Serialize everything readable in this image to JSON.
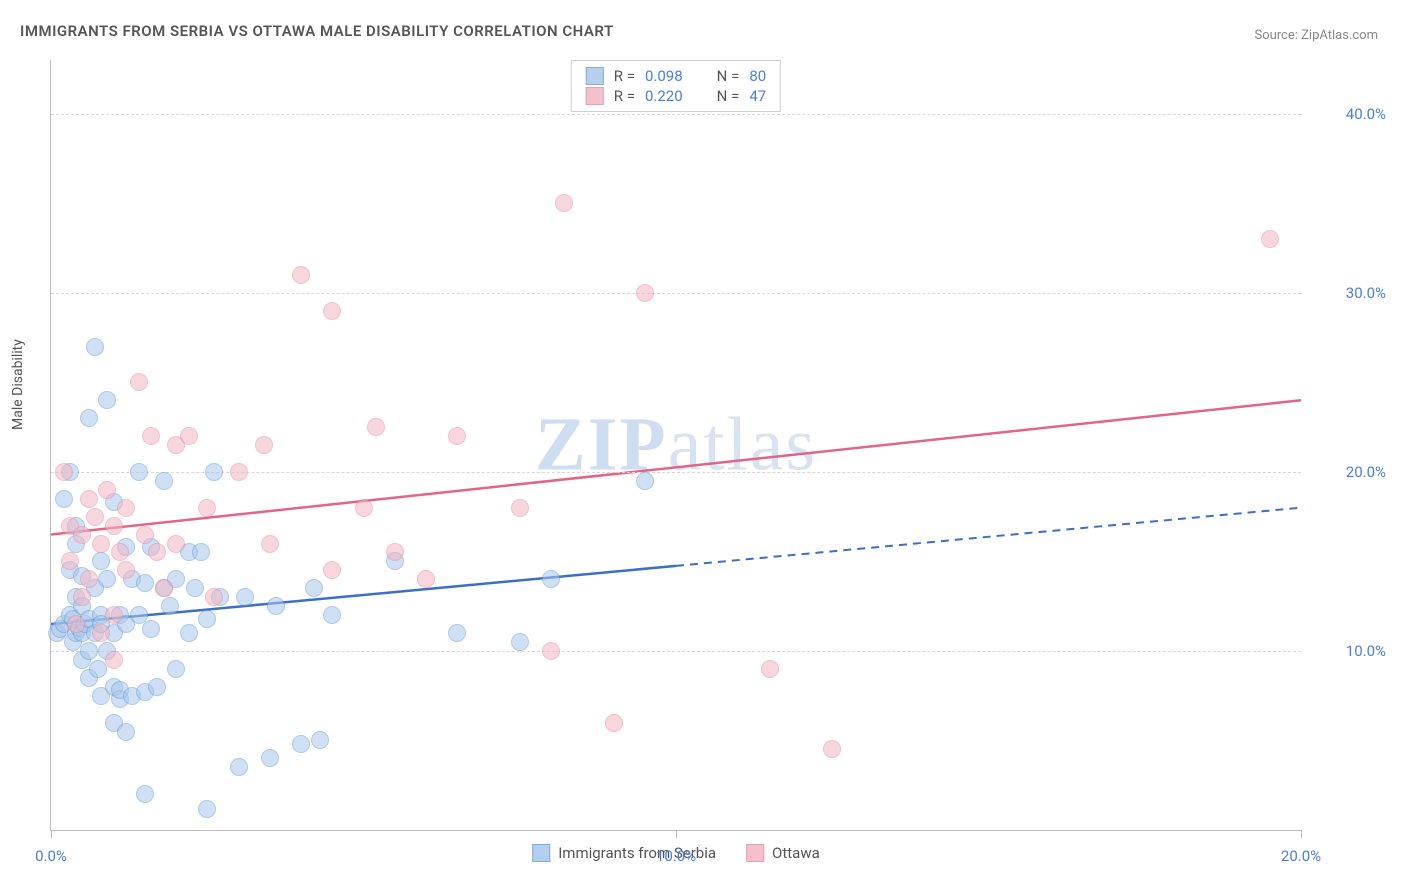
{
  "title": "IMMIGRANTS FROM SERBIA VS OTTAWA MALE DISABILITY CORRELATION CHART",
  "source_label": "Source: ",
  "source_name": "ZipAtlas.com",
  "watermark_a": "ZIP",
  "watermark_b": "atlas",
  "y_axis_label": "Male Disability",
  "chart": {
    "type": "scatter",
    "xlim": [
      0,
      20
    ],
    "ylim": [
      0,
      43
    ],
    "x_ticks": [
      0,
      10,
      20
    ],
    "x_tick_labels": [
      "0.0%",
      "10.0%",
      "20.0%"
    ],
    "y_gridlines": [
      10,
      20,
      30,
      40
    ],
    "y_tick_labels": [
      "10.0%",
      "20.0%",
      "30.0%",
      "40.0%"
    ],
    "background_color": "#ffffff",
    "grid_color": "#d8d8d8",
    "axis_color": "#bdbdbd",
    "tick_label_color": "#4a7fd8",
    "axis_label_color": "#555555"
  },
  "series": [
    {
      "name": "Immigrants from Serbia",
      "fill_color": "#a9c7ec",
      "stroke_color": "#6a9fd6",
      "fill_opacity": 0.55,
      "line_color": "#3b6fc7",
      "line_dash_after_x": 10,
      "regression": {
        "x1": 0,
        "y1": 11.5,
        "x2": 20,
        "y2": 18.0
      },
      "r_label": "R = ",
      "r_value": "0.098",
      "n_label": "N = ",
      "n_value": "80",
      "points": [
        [
          0.1,
          11.0
        ],
        [
          0.15,
          11.2
        ],
        [
          0.2,
          11.5
        ],
        [
          0.2,
          18.5
        ],
        [
          0.3,
          20.0
        ],
        [
          0.3,
          14.5
        ],
        [
          0.3,
          12.0
        ],
        [
          0.35,
          10.5
        ],
        [
          0.35,
          11.8
        ],
        [
          0.4,
          11.0
        ],
        [
          0.4,
          13.0
        ],
        [
          0.4,
          17.0
        ],
        [
          0.4,
          16.0
        ],
        [
          0.45,
          11.3
        ],
        [
          0.5,
          12.5
        ],
        [
          0.5,
          9.5
        ],
        [
          0.5,
          11.0
        ],
        [
          0.5,
          14.2
        ],
        [
          0.55,
          11.5
        ],
        [
          0.6,
          10.0
        ],
        [
          0.6,
          8.5
        ],
        [
          0.6,
          11.8
        ],
        [
          0.6,
          23.0
        ],
        [
          0.7,
          27.0
        ],
        [
          0.7,
          13.5
        ],
        [
          0.7,
          11.0
        ],
        [
          0.75,
          9.0
        ],
        [
          0.8,
          7.5
        ],
        [
          0.8,
          12.0
        ],
        [
          0.8,
          15.0
        ],
        [
          0.8,
          11.5
        ],
        [
          0.9,
          10.0
        ],
        [
          0.9,
          24.0
        ],
        [
          0.9,
          14.0
        ],
        [
          1.0,
          6.0
        ],
        [
          1.0,
          11.0
        ],
        [
          1.0,
          18.3
        ],
        [
          1.0,
          8.0
        ],
        [
          1.1,
          7.3
        ],
        [
          1.1,
          12.0
        ],
        [
          1.1,
          7.8
        ],
        [
          1.2,
          11.5
        ],
        [
          1.2,
          15.8
        ],
        [
          1.2,
          5.5
        ],
        [
          1.3,
          14.0
        ],
        [
          1.3,
          7.5
        ],
        [
          1.4,
          20.0
        ],
        [
          1.4,
          12.0
        ],
        [
          1.5,
          7.7
        ],
        [
          1.5,
          13.8
        ],
        [
          1.6,
          11.2
        ],
        [
          1.6,
          15.8
        ],
        [
          1.7,
          8.0
        ],
        [
          1.8,
          13.5
        ],
        [
          1.8,
          19.5
        ],
        [
          1.9,
          12.5
        ],
        [
          2.0,
          14.0
        ],
        [
          2.0,
          9.0
        ],
        [
          2.2,
          15.5
        ],
        [
          2.2,
          11.0
        ],
        [
          2.3,
          13.5
        ],
        [
          2.4,
          15.5
        ],
        [
          2.5,
          11.8
        ],
        [
          2.6,
          20.0
        ],
        [
          2.7,
          13.0
        ],
        [
          3.0,
          3.5
        ],
        [
          3.1,
          13.0
        ],
        [
          3.5,
          4.0
        ],
        [
          3.6,
          12.5
        ],
        [
          4.0,
          4.8
        ],
        [
          4.2,
          13.5
        ],
        [
          4.3,
          5.0
        ],
        [
          4.5,
          12.0
        ],
        [
          5.5,
          15.0
        ],
        [
          6.5,
          11.0
        ],
        [
          7.5,
          10.5
        ],
        [
          8.0,
          14.0
        ],
        [
          9.5,
          19.5
        ],
        [
          1.5,
          2.0
        ],
        [
          2.5,
          1.2
        ]
      ]
    },
    {
      "name": "Ottawa",
      "fill_color": "#f2b6c4",
      "stroke_color": "#e28fa7",
      "fill_opacity": 0.55,
      "line_color": "#e26587",
      "line_dash_after_x": null,
      "regression": {
        "x1": 0,
        "y1": 16.5,
        "x2": 20,
        "y2": 24.0
      },
      "r_label": "R = ",
      "r_value": "0.220",
      "n_label": "N = ",
      "n_value": "47",
      "points": [
        [
          0.2,
          20.0
        ],
        [
          0.3,
          17.0
        ],
        [
          0.3,
          15.0
        ],
        [
          0.4,
          11.5
        ],
        [
          0.5,
          13.0
        ],
        [
          0.5,
          16.5
        ],
        [
          0.6,
          18.5
        ],
        [
          0.6,
          14.0
        ],
        [
          0.7,
          17.5
        ],
        [
          0.8,
          16.0
        ],
        [
          0.8,
          11.0
        ],
        [
          0.9,
          19.0
        ],
        [
          1.0,
          12.0
        ],
        [
          1.0,
          17.0
        ],
        [
          1.0,
          9.5
        ],
        [
          1.1,
          15.5
        ],
        [
          1.2,
          18.0
        ],
        [
          1.2,
          14.5
        ],
        [
          1.4,
          25.0
        ],
        [
          1.5,
          16.5
        ],
        [
          1.6,
          22.0
        ],
        [
          1.7,
          15.5
        ],
        [
          1.8,
          13.5
        ],
        [
          2.0,
          21.5
        ],
        [
          2.0,
          16.0
        ],
        [
          2.2,
          22.0
        ],
        [
          2.5,
          18.0
        ],
        [
          2.6,
          13.0
        ],
        [
          3.0,
          20.0
        ],
        [
          3.4,
          21.5
        ],
        [
          3.5,
          16.0
        ],
        [
          4.0,
          31.0
        ],
        [
          4.5,
          14.5
        ],
        [
          4.5,
          29.0
        ],
        [
          5.0,
          18.0
        ],
        [
          5.2,
          22.5
        ],
        [
          5.5,
          15.5
        ],
        [
          6.0,
          14.0
        ],
        [
          6.5,
          22.0
        ],
        [
          7.5,
          18.0
        ],
        [
          8.0,
          10.0
        ],
        [
          8.2,
          35.0
        ],
        [
          9.0,
          6.0
        ],
        [
          9.5,
          30.0
        ],
        [
          11.5,
          9.0
        ],
        [
          12.5,
          4.5
        ],
        [
          19.5,
          33.0
        ]
      ]
    }
  ]
}
